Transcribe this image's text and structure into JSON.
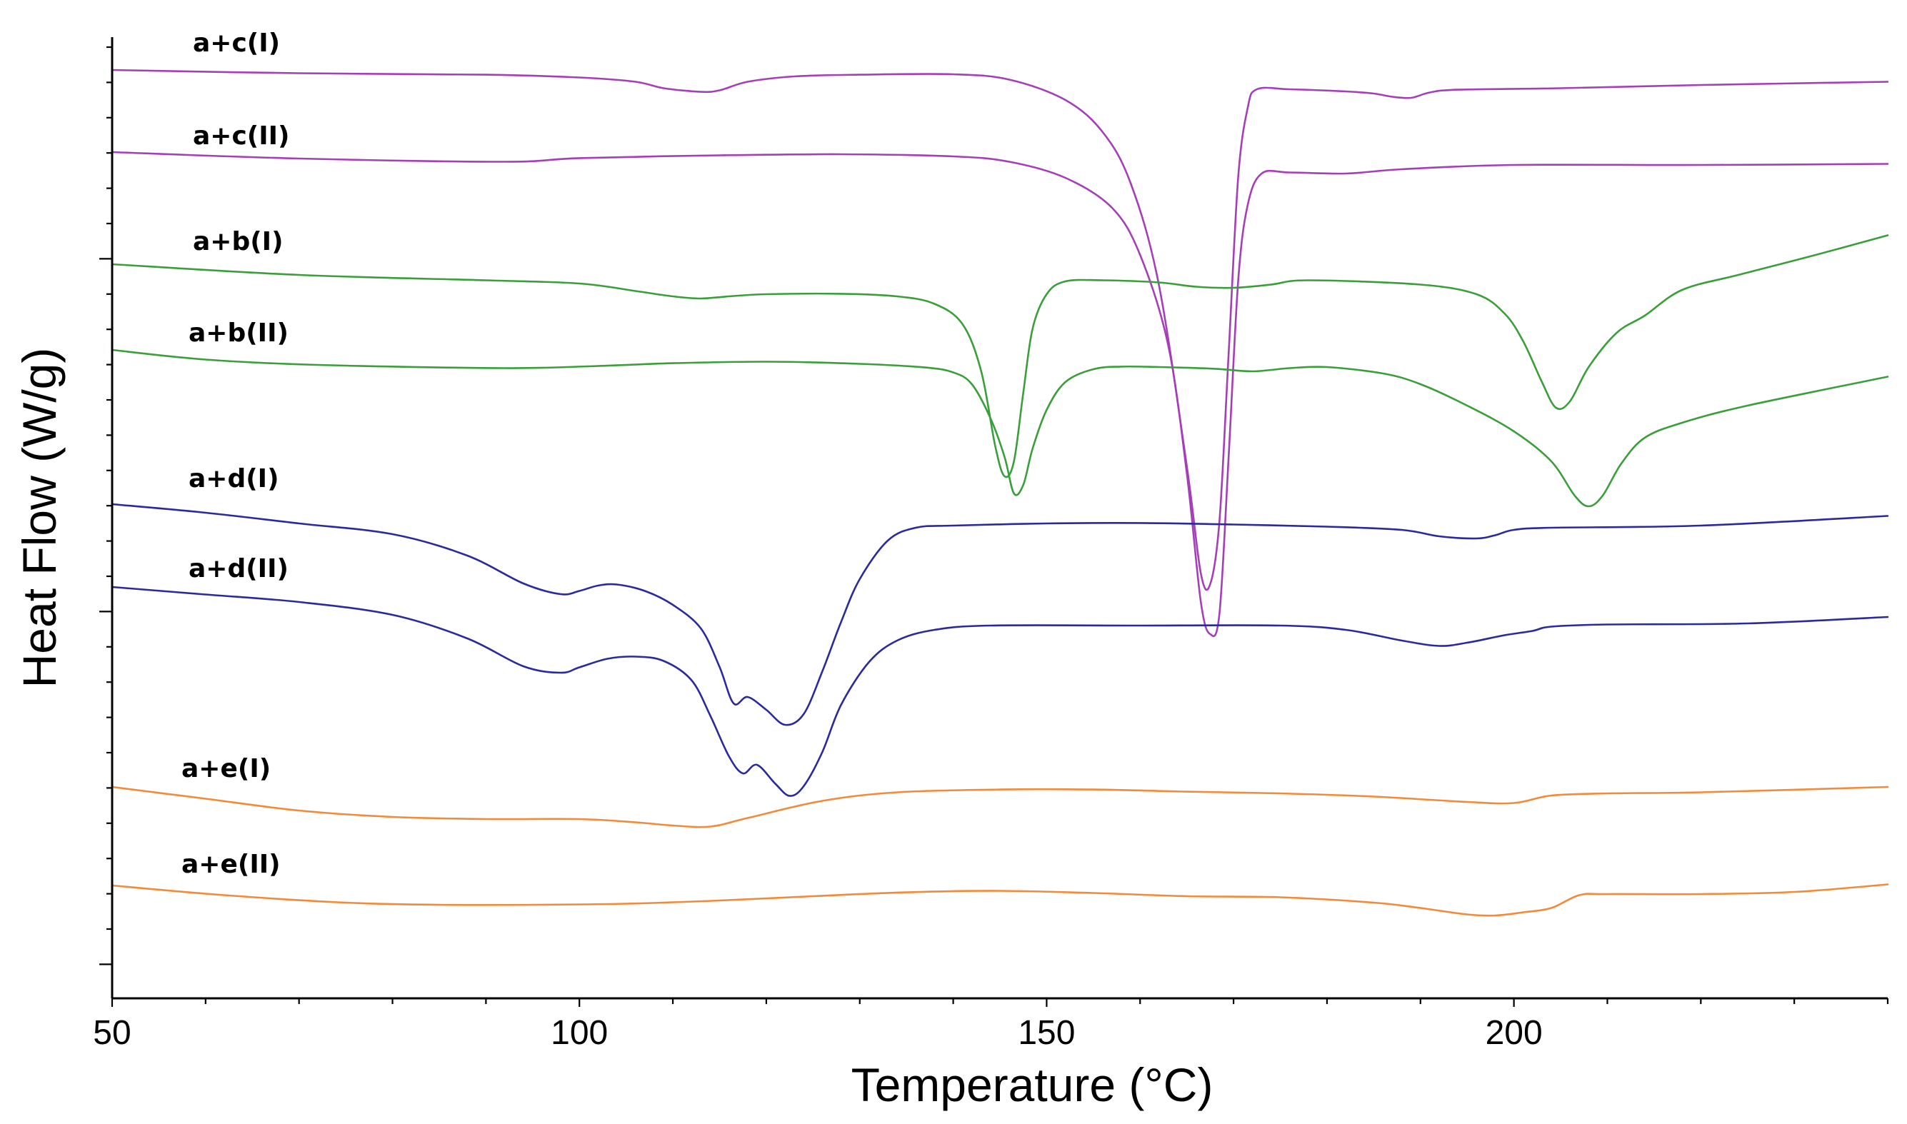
{
  "chart_data": {
    "type": "line",
    "title": "",
    "xlabel": "Temperature (°C)",
    "ylabel": "Heat Flow (W/g)",
    "xlim": [
      50,
      240
    ],
    "x_ticks": [
      50,
      100,
      150,
      200
    ],
    "x_tick_labels": [
      "50",
      "100",
      "150",
      "200"
    ],
    "y_tick_labels": [],
    "grid": false,
    "legend": "labels placed above each curve at left",
    "series": [
      {
        "name": "a+c(I)",
        "color": "#A43FB8",
        "points": [
          [
            50,
            0.0
          ],
          [
            70,
            -0.15
          ],
          [
            90,
            -0.22
          ],
          [
            100,
            -0.35
          ],
          [
            106,
            -0.55
          ],
          [
            109,
            -0.85
          ],
          [
            113,
            -1.02
          ],
          [
            115,
            -0.95
          ],
          [
            118,
            -0.55
          ],
          [
            123,
            -0.3
          ],
          [
            130,
            -0.22
          ],
          [
            140,
            -0.2
          ],
          [
            146,
            -0.45
          ],
          [
            152,
            -1.4
          ],
          [
            156,
            -2.9
          ],
          [
            159,
            -5.3
          ],
          [
            162,
            -10.0
          ],
          [
            165,
            -18.5
          ],
          [
            166.5,
            -23.5
          ],
          [
            167.5,
            -24.0
          ],
          [
            168.5,
            -21.0
          ],
          [
            169.5,
            -13.0
          ],
          [
            170.5,
            -5.0
          ],
          [
            171.5,
            -1.8
          ],
          [
            172.5,
            -0.9
          ],
          [
            176,
            -0.9
          ],
          [
            182,
            -1.0
          ],
          [
            185,
            -1.1
          ],
          [
            187,
            -1.25
          ],
          [
            189,
            -1.3
          ],
          [
            191,
            -1.05
          ],
          [
            194,
            -0.92
          ],
          [
            205,
            -0.85
          ],
          [
            220,
            -0.7
          ],
          [
            240,
            -0.55
          ]
        ]
      },
      {
        "name": "a+c(II)",
        "color": "#A43FB8",
        "points": [
          [
            50,
            0.0
          ],
          [
            70,
            -0.3
          ],
          [
            92,
            -0.45
          ],
          [
            100,
            -0.28
          ],
          [
            115,
            -0.15
          ],
          [
            128,
            -0.1
          ],
          [
            140,
            -0.2
          ],
          [
            146,
            -0.45
          ],
          [
            152,
            -1.2
          ],
          [
            157,
            -2.6
          ],
          [
            160,
            -4.8
          ],
          [
            163,
            -9.0
          ],
          [
            165,
            -15.0
          ],
          [
            166.5,
            -21.0
          ],
          [
            167.5,
            -22.5
          ],
          [
            168.5,
            -21.5
          ],
          [
            169.5,
            -14.0
          ],
          [
            170.5,
            -6.0
          ],
          [
            171.5,
            -2.5
          ],
          [
            173,
            -1.0
          ],
          [
            176,
            -0.95
          ],
          [
            182,
            -1.0
          ],
          [
            188,
            -0.8
          ],
          [
            200,
            -0.6
          ],
          [
            220,
            -0.6
          ],
          [
            240,
            -0.55
          ]
        ]
      },
      {
        "name": "a+b(I)",
        "color": "#3A9E3A",
        "points": [
          [
            50,
            0.0
          ],
          [
            70,
            -0.5
          ],
          [
            90,
            -0.75
          ],
          [
            100,
            -0.9
          ],
          [
            106,
            -1.25
          ],
          [
            110,
            -1.5
          ],
          [
            113,
            -1.6
          ],
          [
            116,
            -1.5
          ],
          [
            120,
            -1.4
          ],
          [
            128,
            -1.38
          ],
          [
            134,
            -1.5
          ],
          [
            138,
            -1.85
          ],
          [
            141,
            -2.8
          ],
          [
            143,
            -5.0
          ],
          [
            144.5,
            -8.5
          ],
          [
            145.5,
            -9.9
          ],
          [
            146.5,
            -9.2
          ],
          [
            147.5,
            -6.0
          ],
          [
            148.5,
            -3.0
          ],
          [
            150,
            -1.4
          ],
          [
            152,
            -0.8
          ],
          [
            156,
            -0.75
          ],
          [
            162,
            -0.85
          ],
          [
            166,
            -1.05
          ],
          [
            170,
            -1.1
          ],
          [
            174,
            -0.95
          ],
          [
            178,
            -0.75
          ],
          [
            190,
            -0.95
          ],
          [
            196,
            -1.4
          ],
          [
            199,
            -2.3
          ],
          [
            201,
            -3.6
          ],
          [
            203,
            -5.5
          ],
          [
            204.5,
            -6.7
          ],
          [
            206,
            -6.4
          ],
          [
            208,
            -4.8
          ],
          [
            211,
            -3.2
          ],
          [
            214,
            -2.4
          ],
          [
            218,
            -1.2
          ],
          [
            224,
            -0.5
          ],
          [
            232,
            0.4
          ],
          [
            240,
            1.35
          ]
        ]
      },
      {
        "name": "a+b(II)",
        "color": "#3A9E3A",
        "points": [
          [
            50,
            0.0
          ],
          [
            60,
            -0.45
          ],
          [
            72,
            -0.7
          ],
          [
            92,
            -0.85
          ],
          [
            102,
            -0.75
          ],
          [
            110,
            -0.62
          ],
          [
            120,
            -0.55
          ],
          [
            130,
            -0.65
          ],
          [
            137,
            -0.82
          ],
          [
            140,
            -1.05
          ],
          [
            142,
            -1.6
          ],
          [
            144,
            -3.2
          ],
          [
            145.5,
            -5.0
          ],
          [
            146.5,
            -6.7
          ],
          [
            147.5,
            -6.3
          ],
          [
            148.5,
            -4.6
          ],
          [
            150,
            -2.8
          ],
          [
            152,
            -1.5
          ],
          [
            155,
            -0.9
          ],
          [
            158,
            -0.78
          ],
          [
            162,
            -0.8
          ],
          [
            168,
            -0.88
          ],
          [
            172,
            -1.0
          ],
          [
            176,
            -0.85
          ],
          [
            180,
            -0.8
          ],
          [
            186,
            -1.1
          ],
          [
            190,
            -1.6
          ],
          [
            195,
            -2.6
          ],
          [
            200,
            -3.8
          ],
          [
            204,
            -5.2
          ],
          [
            206.5,
            -6.8
          ],
          [
            208,
            -7.3
          ],
          [
            209.5,
            -6.8
          ],
          [
            211.5,
            -5.3
          ],
          [
            214,
            -4.1
          ],
          [
            218,
            -3.4
          ],
          [
            225,
            -2.6
          ],
          [
            240,
            -1.25
          ]
        ]
      },
      {
        "name": "a+d(I)",
        "color": "#2A2A9E",
        "points": [
          [
            50,
            0.0
          ],
          [
            60,
            -0.4
          ],
          [
            70,
            -0.9
          ],
          [
            80,
            -1.4
          ],
          [
            88,
            -2.4
          ],
          [
            94,
            -3.7
          ],
          [
            98,
            -4.2
          ],
          [
            100,
            -4.05
          ],
          [
            102,
            -3.8
          ],
          [
            104,
            -3.75
          ],
          [
            107,
            -4.05
          ],
          [
            110,
            -4.7
          ],
          [
            113,
            -5.8
          ],
          [
            115,
            -7.6
          ],
          [
            116.5,
            -9.3
          ],
          [
            118,
            -9.0
          ],
          [
            120,
            -9.6
          ],
          [
            122,
            -10.3
          ],
          [
            124,
            -9.8
          ],
          [
            126,
            -7.8
          ],
          [
            128,
            -5.5
          ],
          [
            130,
            -3.5
          ],
          [
            133,
            -1.7
          ],
          [
            136,
            -1.1
          ],
          [
            140,
            -1.0
          ],
          [
            150,
            -0.9
          ],
          [
            160,
            -0.88
          ],
          [
            170,
            -0.95
          ],
          [
            180,
            -1.05
          ],
          [
            188,
            -1.2
          ],
          [
            192,
            -1.5
          ],
          [
            196,
            -1.6
          ],
          [
            198,
            -1.45
          ],
          [
            200,
            -1.2
          ],
          [
            204,
            -1.1
          ],
          [
            220,
            -1.0
          ],
          [
            240,
            -0.55
          ]
        ]
      },
      {
        "name": "a+d(II)",
        "color": "#2A2A9E",
        "points": [
          [
            50,
            0.0
          ],
          [
            60,
            -0.35
          ],
          [
            70,
            -0.7
          ],
          [
            80,
            -1.3
          ],
          [
            88,
            -2.4
          ],
          [
            94,
            -3.7
          ],
          [
            98,
            -4.0
          ],
          [
            100,
            -3.75
          ],
          [
            103,
            -3.35
          ],
          [
            106,
            -3.25
          ],
          [
            109,
            -3.45
          ],
          [
            112,
            -4.35
          ],
          [
            114,
            -6.0
          ],
          [
            116,
            -7.9
          ],
          [
            117.5,
            -8.7
          ],
          [
            119,
            -8.3
          ],
          [
            121,
            -9.2
          ],
          [
            122.5,
            -9.75
          ],
          [
            124,
            -9.3
          ],
          [
            126,
            -7.7
          ],
          [
            128,
            -5.5
          ],
          [
            131,
            -3.5
          ],
          [
            134,
            -2.5
          ],
          [
            138,
            -2.0
          ],
          [
            144,
            -1.8
          ],
          [
            160,
            -1.8
          ],
          [
            175,
            -1.8
          ],
          [
            182,
            -2.0
          ],
          [
            188,
            -2.5
          ],
          [
            192,
            -2.75
          ],
          [
            195,
            -2.6
          ],
          [
            199,
            -2.25
          ],
          [
            202,
            -2.05
          ],
          [
            204,
            -1.85
          ],
          [
            210,
            -1.75
          ],
          [
            225,
            -1.7
          ],
          [
            240,
            -1.4
          ]
        ]
      },
      {
        "name": "a+e(I)",
        "color": "#F28A3A",
        "points": [
          [
            50,
            0.0
          ],
          [
            60,
            -0.55
          ],
          [
            70,
            -1.1
          ],
          [
            80,
            -1.4
          ],
          [
            90,
            -1.5
          ],
          [
            100,
            -1.5
          ],
          [
            106,
            -1.65
          ],
          [
            110,
            -1.8
          ],
          [
            114,
            -1.85
          ],
          [
            118,
            -1.45
          ],
          [
            126,
            -0.65
          ],
          [
            134,
            -0.25
          ],
          [
            145,
            -0.12
          ],
          [
            155,
            -0.12
          ],
          [
            165,
            -0.22
          ],
          [
            175,
            -0.3
          ],
          [
            185,
            -0.45
          ],
          [
            195,
            -0.7
          ],
          [
            200,
            -0.75
          ],
          [
            204,
            -0.4
          ],
          [
            210,
            -0.3
          ],
          [
            220,
            -0.25
          ],
          [
            240,
            0.0
          ]
        ]
      },
      {
        "name": "a+e(II)",
        "color": "#F28A3A",
        "points": [
          [
            50,
            0.0
          ],
          [
            62,
            -0.45
          ],
          [
            75,
            -0.8
          ],
          [
            85,
            -0.9
          ],
          [
            95,
            -0.9
          ],
          [
            105,
            -0.85
          ],
          [
            115,
            -0.7
          ],
          [
            125,
            -0.5
          ],
          [
            135,
            -0.32
          ],
          [
            145,
            -0.25
          ],
          [
            155,
            -0.35
          ],
          [
            165,
            -0.5
          ],
          [
            175,
            -0.55
          ],
          [
            185,
            -0.8
          ],
          [
            190,
            -1.05
          ],
          [
            195,
            -1.35
          ],
          [
            198,
            -1.4
          ],
          [
            201,
            -1.25
          ],
          [
            204,
            -1.05
          ],
          [
            207,
            -0.45
          ],
          [
            210,
            -0.4
          ],
          [
            220,
            -0.4
          ],
          [
            230,
            -0.3
          ],
          [
            240,
            0.05
          ]
        ]
      }
    ]
  }
}
